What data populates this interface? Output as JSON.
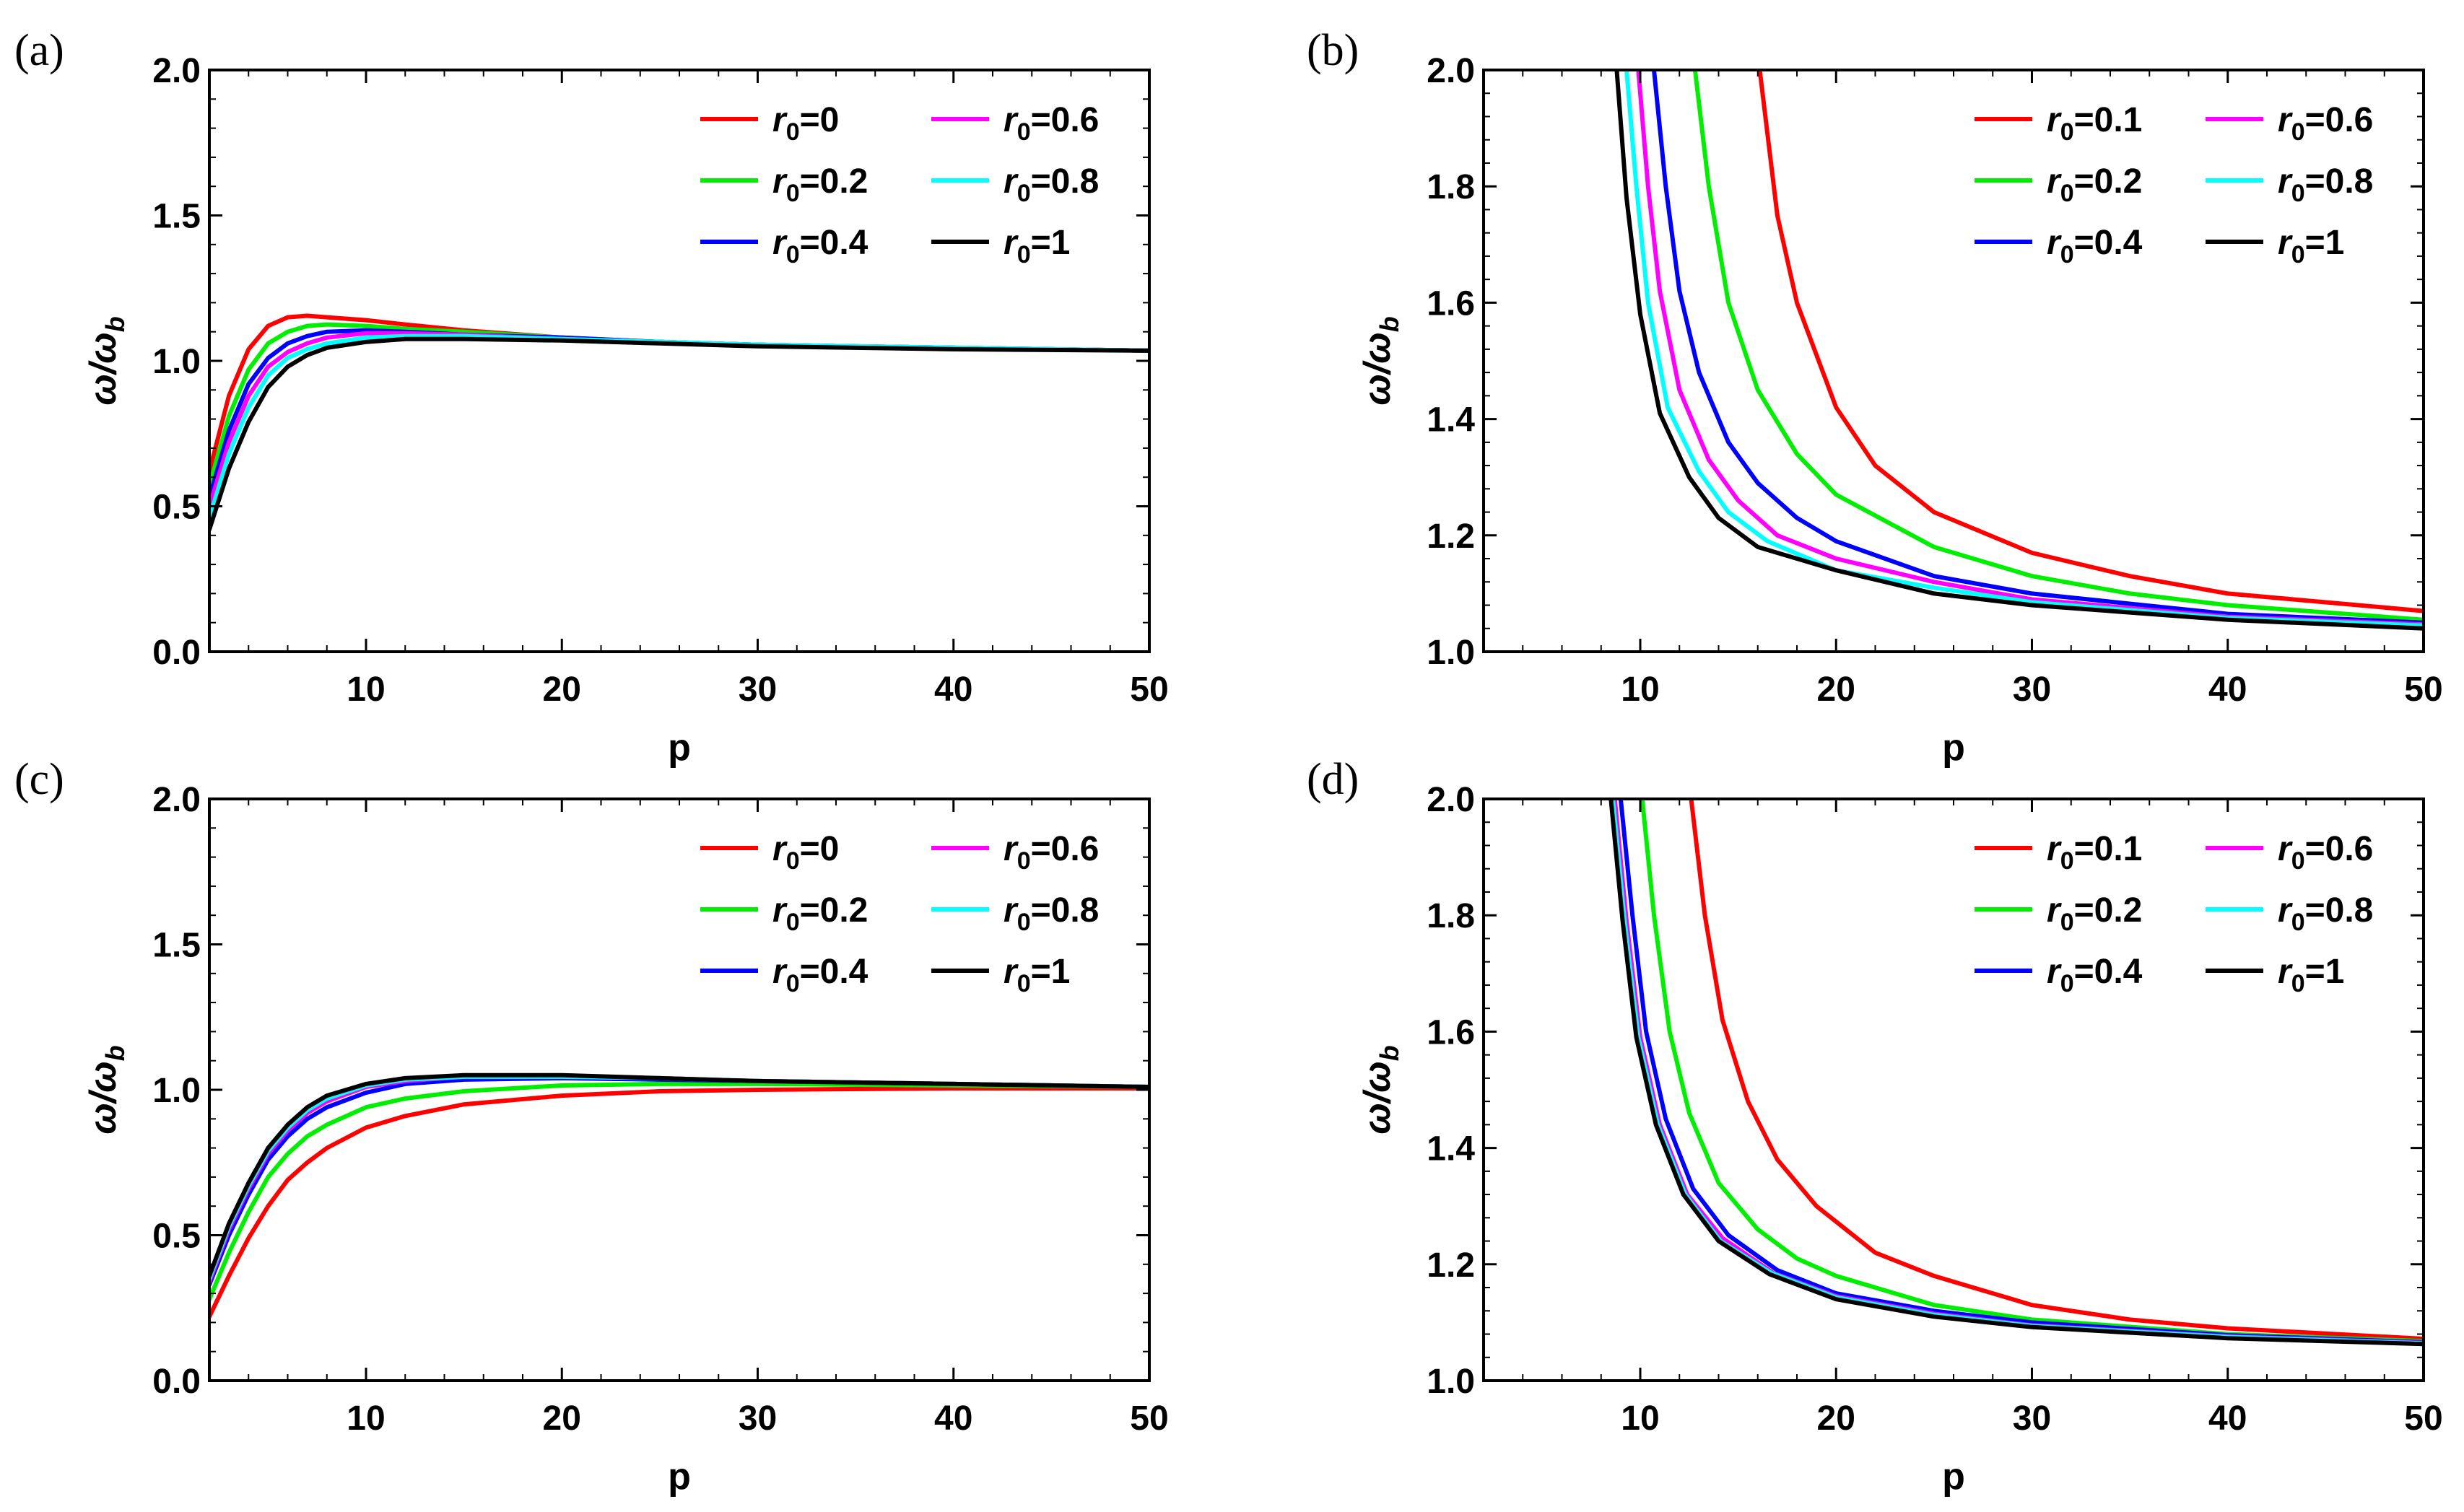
{
  "colors": {
    "red": "#ff0000",
    "green": "#00ee00",
    "blue": "#0000ff",
    "magenta": "#ff00ff",
    "cyan": "#00ffff",
    "black": "#000000"
  },
  "chart_data": [
    {
      "panel": "(a)",
      "type": "line",
      "xlabel": "p",
      "ylabel": "ω/ω_b",
      "xlim": [
        2,
        50
      ],
      "ylim": [
        0.0,
        2.0
      ],
      "xticks": [
        "10",
        "20",
        "30",
        "40",
        "50"
      ],
      "xtick_values": [
        10,
        20,
        30,
        40,
        50
      ],
      "yticks": [
        "0.0",
        "0.5",
        "1.0",
        "1.5",
        "2.0"
      ],
      "ytick_values": [
        0.0,
        0.5,
        1.0,
        1.5,
        2.0
      ],
      "legend_position": "top-right",
      "x": [
        2,
        3,
        4,
        5,
        6,
        7,
        8,
        10,
        12,
        15,
        20,
        25,
        30,
        40,
        50
      ],
      "series": [
        {
          "name": "r0=0",
          "sub": "0",
          "value": "=0",
          "color": "#ff0000",
          "values": [
            0.62,
            0.88,
            1.04,
            1.12,
            1.15,
            1.155,
            1.15,
            1.14,
            1.125,
            1.105,
            1.08,
            1.065,
            1.055,
            1.045,
            1.035
          ]
        },
        {
          "name": "r0=0.2",
          "sub": "0",
          "value": "=0.2",
          "color": "#00ee00",
          "values": [
            0.57,
            0.81,
            0.97,
            1.06,
            1.1,
            1.12,
            1.125,
            1.12,
            1.11,
            1.1,
            1.08,
            1.065,
            1.055,
            1.045,
            1.035
          ]
        },
        {
          "name": "r0=0.4",
          "sub": "0",
          "value": "=0.4",
          "color": "#0000ff",
          "values": [
            0.53,
            0.76,
            0.92,
            1.01,
            1.06,
            1.085,
            1.1,
            1.105,
            1.1,
            1.09,
            1.08,
            1.065,
            1.055,
            1.045,
            1.035
          ]
        },
        {
          "name": "r0=0.6",
          "sub": "0",
          "value": "=0.6",
          "color": "#ff00ff",
          "values": [
            0.5,
            0.72,
            0.88,
            0.98,
            1.03,
            1.06,
            1.08,
            1.095,
            1.095,
            1.09,
            1.075,
            1.065,
            1.055,
            1.045,
            1.035
          ]
        },
        {
          "name": "r0=0.8",
          "sub": "0",
          "value": "=0.8",
          "color": "#00ffff",
          "values": [
            0.46,
            0.68,
            0.84,
            0.95,
            1.01,
            1.04,
            1.06,
            1.08,
            1.085,
            1.085,
            1.075,
            1.065,
            1.055,
            1.045,
            1.035
          ]
        },
        {
          "name": "r0=1",
          "sub": "0",
          "value": "=1",
          "color": "#000000",
          "values": [
            0.42,
            0.63,
            0.79,
            0.91,
            0.98,
            1.02,
            1.045,
            1.065,
            1.075,
            1.075,
            1.07,
            1.06,
            1.05,
            1.04,
            1.035
          ]
        }
      ]
    },
    {
      "panel": "(b)",
      "type": "line",
      "xlabel": "p",
      "ylabel": "ω/ω_b",
      "xlim": [
        2,
        50
      ],
      "ylim": [
        1.0,
        2.0
      ],
      "xticks": [
        "10",
        "20",
        "30",
        "40",
        "50"
      ],
      "xtick_values": [
        10,
        20,
        30,
        40,
        50
      ],
      "yticks": [
        "1.0",
        "1.2",
        "1.4",
        "1.6",
        "1.8",
        "2.0"
      ],
      "ytick_values": [
        1.0,
        1.2,
        1.4,
        1.6,
        1.8,
        2.0
      ],
      "legend_position": "top-right",
      "series": [
        {
          "name": "r0=0.1",
          "sub": "0",
          "value": "=0.1",
          "color": "#ff0000",
          "x": [
            16.1,
            17,
            18,
            20,
            22,
            25,
            30,
            35,
            40,
            45,
            50
          ],
          "values": [
            2.0,
            1.75,
            1.6,
            1.42,
            1.32,
            1.24,
            1.17,
            1.13,
            1.1,
            1.085,
            1.07
          ]
        },
        {
          "name": "r0=0.2",
          "sub": "0",
          "value": "=0.2",
          "color": "#00ee00",
          "x": [
            12.8,
            13.5,
            14.5,
            16,
            18,
            20,
            25,
            30,
            35,
            40,
            50
          ],
          "values": [
            2.0,
            1.8,
            1.6,
            1.45,
            1.34,
            1.27,
            1.18,
            1.13,
            1.1,
            1.08,
            1.055
          ]
        },
        {
          "name": "r0=0.4",
          "sub": "0",
          "value": "=0.4",
          "color": "#0000ff",
          "x": [
            10.7,
            11.3,
            12,
            13,
            14.5,
            16,
            18,
            20,
            25,
            30,
            40,
            50
          ],
          "values": [
            2.0,
            1.8,
            1.62,
            1.48,
            1.36,
            1.29,
            1.23,
            1.19,
            1.13,
            1.1,
            1.065,
            1.05
          ]
        },
        {
          "name": "r0=0.6",
          "sub": "0",
          "value": "=0.6",
          "color": "#ff00ff",
          "x": [
            9.9,
            10.4,
            11,
            12,
            13.5,
            15,
            17,
            20,
            25,
            30,
            40,
            50
          ],
          "values": [
            2.0,
            1.8,
            1.62,
            1.45,
            1.33,
            1.26,
            1.2,
            1.16,
            1.12,
            1.09,
            1.06,
            1.047
          ]
        },
        {
          "name": "r0=0.8",
          "sub": "0",
          "value": "=0.8",
          "color": "#00ffff",
          "x": [
            9.3,
            9.8,
            10.4,
            11.4,
            13,
            14.5,
            16.5,
            20,
            25,
            30,
            40,
            50
          ],
          "values": [
            2.0,
            1.8,
            1.6,
            1.42,
            1.31,
            1.24,
            1.19,
            1.14,
            1.11,
            1.085,
            1.058,
            1.045
          ]
        },
        {
          "name": "r0=1",
          "sub": "0",
          "value": "=1",
          "color": "#000000",
          "x": [
            8.8,
            9.3,
            10,
            11,
            12.5,
            14,
            16,
            20,
            25,
            30,
            40,
            50
          ],
          "values": [
            2.0,
            1.78,
            1.58,
            1.41,
            1.3,
            1.23,
            1.18,
            1.14,
            1.1,
            1.08,
            1.055,
            1.04
          ]
        }
      ]
    },
    {
      "panel": "(c)",
      "type": "line",
      "xlabel": "p",
      "ylabel": "ω/ω_b",
      "xlim": [
        2,
        50
      ],
      "ylim": [
        0.0,
        2.0
      ],
      "xticks": [
        "10",
        "20",
        "30",
        "40",
        "50"
      ],
      "xtick_values": [
        10,
        20,
        30,
        40,
        50
      ],
      "yticks": [
        "0.0",
        "0.5",
        "1.0",
        "1.5",
        "2.0"
      ],
      "ytick_values": [
        0.0,
        0.5,
        1.0,
        1.5,
        2.0
      ],
      "legend_position": "top-right",
      "x": [
        2,
        3,
        4,
        5,
        6,
        7,
        8,
        10,
        12,
        15,
        20,
        25,
        30,
        40,
        50
      ],
      "series": [
        {
          "name": "r0=0",
          "sub": "0",
          "value": "=0",
          "color": "#ff0000",
          "values": [
            0.22,
            0.36,
            0.49,
            0.6,
            0.69,
            0.75,
            0.8,
            0.87,
            0.91,
            0.95,
            0.98,
            0.995,
            1.0,
            1.005,
            1.005
          ]
        },
        {
          "name": "r0=0.2",
          "sub": "0",
          "value": "=0.2",
          "color": "#00ee00",
          "values": [
            0.28,
            0.44,
            0.58,
            0.7,
            0.78,
            0.84,
            0.88,
            0.94,
            0.97,
            0.995,
            1.015,
            1.02,
            1.02,
            1.015,
            1.01
          ]
        },
        {
          "name": "r0=0.4",
          "sub": "0",
          "value": "=0.4",
          "color": "#0000ff",
          "values": [
            0.33,
            0.5,
            0.64,
            0.76,
            0.84,
            0.9,
            0.94,
            0.99,
            1.02,
            1.035,
            1.04,
            1.035,
            1.03,
            1.02,
            1.01
          ]
        },
        {
          "name": "r0=0.6",
          "sub": "0",
          "value": "=0.6",
          "color": "#ff00ff",
          "values": [
            0.34,
            0.52,
            0.66,
            0.78,
            0.86,
            0.92,
            0.96,
            1.01,
            1.03,
            1.045,
            1.045,
            1.04,
            1.03,
            1.02,
            1.01
          ]
        },
        {
          "name": "r0=0.8",
          "sub": "0",
          "value": "=0.8",
          "color": "#00ffff",
          "values": [
            0.35,
            0.53,
            0.67,
            0.79,
            0.87,
            0.93,
            0.97,
            1.015,
            1.035,
            1.045,
            1.045,
            1.04,
            1.03,
            1.02,
            1.01
          ]
        },
        {
          "name": "r0=1",
          "sub": "0",
          "value": "=1",
          "color": "#000000",
          "values": [
            0.36,
            0.54,
            0.68,
            0.8,
            0.88,
            0.94,
            0.98,
            1.02,
            1.04,
            1.05,
            1.05,
            1.04,
            1.03,
            1.02,
            1.01
          ]
        }
      ]
    },
    {
      "panel": "(d)",
      "type": "line",
      "xlabel": "p",
      "ylabel": "ω/ω_b",
      "xlim": [
        2,
        50
      ],
      "ylim": [
        1.0,
        2.0
      ],
      "xticks": [
        "10",
        "20",
        "30",
        "40",
        "50"
      ],
      "xtick_values": [
        10,
        20,
        30,
        40,
        50
      ],
      "yticks": [
        "1.0",
        "1.2",
        "1.4",
        "1.6",
        "1.8",
        "2.0"
      ],
      "ytick_values": [
        1.0,
        1.2,
        1.4,
        1.6,
        1.8,
        2.0
      ],
      "legend_position": "top-right",
      "series": [
        {
          "name": "r0=0.1",
          "sub": "0",
          "value": "=0.1",
          "color": "#ff0000",
          "x": [
            12.6,
            13.3,
            14.2,
            15.5,
            17,
            19,
            22,
            25,
            30,
            35,
            40,
            50
          ],
          "values": [
            2.0,
            1.8,
            1.62,
            1.48,
            1.38,
            1.3,
            1.22,
            1.18,
            1.13,
            1.105,
            1.09,
            1.072
          ]
        },
        {
          "name": "r0=0.2",
          "sub": "0",
          "value": "=0.2",
          "color": "#00ee00",
          "x": [
            10.1,
            10.7,
            11.5,
            12.5,
            14,
            16,
            18,
            20,
            25,
            30,
            40,
            50
          ],
          "values": [
            2.0,
            1.8,
            1.6,
            1.46,
            1.34,
            1.26,
            1.21,
            1.18,
            1.13,
            1.105,
            1.08,
            1.068
          ]
        },
        {
          "name": "r0=0.4",
          "sub": "0",
          "value": "=0.4",
          "color": "#0000ff",
          "x": [
            9.0,
            9.6,
            10.3,
            11.3,
            12.7,
            14.5,
            17,
            20,
            25,
            30,
            40,
            50
          ],
          "values": [
            2.0,
            1.8,
            1.6,
            1.45,
            1.33,
            1.25,
            1.19,
            1.15,
            1.12,
            1.1,
            1.078,
            1.066
          ]
        },
        {
          "name": "r0=0.6",
          "sub": "0",
          "value": "=0.6",
          "color": "#ff00ff",
          "x": [
            8.7,
            9.3,
            10.0,
            11.0,
            12.4,
            14.2,
            16.8,
            20,
            25,
            30,
            40,
            50
          ],
          "values": [
            2.0,
            1.79,
            1.59,
            1.44,
            1.32,
            1.245,
            1.185,
            1.145,
            1.115,
            1.095,
            1.076,
            1.065
          ]
        },
        {
          "name": "r0=0.8",
          "sub": "0",
          "value": "=0.8",
          "color": "#00ffff",
          "x": [
            8.6,
            9.2,
            9.9,
            10.9,
            12.3,
            14.1,
            16.7,
            20,
            25,
            30,
            40,
            50
          ],
          "values": [
            2.0,
            1.79,
            1.59,
            1.44,
            1.32,
            1.24,
            1.185,
            1.143,
            1.113,
            1.094,
            1.075,
            1.064
          ]
        },
        {
          "name": "r0=1",
          "sub": "0",
          "value": "=1",
          "color": "#000000",
          "x": [
            8.5,
            9.1,
            9.8,
            10.8,
            12.2,
            14.0,
            16.6,
            20,
            25,
            30,
            40,
            50
          ],
          "values": [
            2.0,
            1.79,
            1.59,
            1.44,
            1.32,
            1.24,
            1.183,
            1.14,
            1.11,
            1.092,
            1.073,
            1.063
          ]
        }
      ]
    }
  ]
}
